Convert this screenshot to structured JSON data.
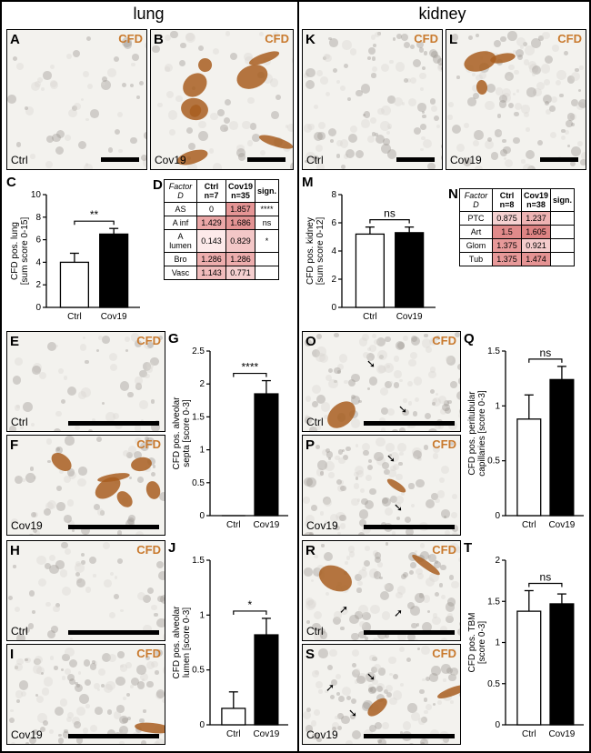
{
  "headers": {
    "left": "lung",
    "right": "kidney"
  },
  "cfd_label": "CFD",
  "cfd_color": "#c97a2e",
  "ctrl": "Ctrl",
  "cov": "Cov19",
  "panels": {
    "A": {
      "letter": "A",
      "cond": "Ctrl"
    },
    "B": {
      "letter": "B",
      "cond": "Cov19"
    },
    "K": {
      "letter": "K",
      "cond": "Ctrl"
    },
    "L": {
      "letter": "L",
      "cond": "Cov19"
    },
    "E": {
      "letter": "E",
      "cond": "Ctrl"
    },
    "F": {
      "letter": "F",
      "cond": "Cov19"
    },
    "H": {
      "letter": "H",
      "cond": "Ctrl"
    },
    "I": {
      "letter": "I",
      "cond": "Cov19"
    },
    "O": {
      "letter": "O",
      "cond": "Ctrl"
    },
    "P": {
      "letter": "P",
      "cond": "Cov19"
    },
    "R": {
      "letter": "R",
      "cond": "Ctrl"
    },
    "S": {
      "letter": "S",
      "cond": "Cov19"
    }
  },
  "charts": {
    "C": {
      "letter": "C",
      "ylabel": "CFD pos. lung\n[sum score 0-15]",
      "sig": "**",
      "ymax": 10,
      "ticks": [
        0,
        2,
        4,
        6,
        8,
        10
      ],
      "ctrl_val": 4.0,
      "ctrl_err": 0.8,
      "cov_val": 6.5,
      "cov_err": 0.5
    },
    "M": {
      "letter": "M",
      "ylabel": "CFD pos. kidney\n[sum score 0-12]",
      "sig": "ns",
      "ymax": 8,
      "ticks": [
        0,
        2,
        4,
        6,
        8
      ],
      "ctrl_val": 5.2,
      "ctrl_err": 0.5,
      "cov_val": 5.3,
      "cov_err": 0.4
    },
    "G": {
      "letter": "G",
      "ylabel": "CFD pos. alveolar\nsepta [score 0-3]",
      "sig": "****",
      "ymax": 2.5,
      "ticks": [
        0,
        0.5,
        1.0,
        1.5,
        2.0,
        2.5
      ],
      "ctrl_val": 0.0,
      "ctrl_err": 0.0,
      "cov_val": 1.85,
      "cov_err": 0.2
    },
    "J": {
      "letter": "J",
      "ylabel": "CFD pos. alveolar\nlumen [score 0-3]",
      "sig": "*",
      "ymax": 1.5,
      "ticks": [
        0,
        0.5,
        1.0,
        1.5
      ],
      "ctrl_val": 0.15,
      "ctrl_err": 0.15,
      "cov_val": 0.82,
      "cov_err": 0.15
    },
    "Q": {
      "letter": "Q",
      "ylabel": "CFD pos. peritubular\ncapillaries [score 0-3]",
      "sig": "ns",
      "ymax": 1.5,
      "ticks": [
        0,
        0.5,
        1.0,
        1.5
      ],
      "ctrl_val": 0.88,
      "ctrl_err": 0.22,
      "cov_val": 1.24,
      "cov_err": 0.12
    },
    "T": {
      "letter": "T",
      "ylabel": "CFD pos. TBM\n[score 0-3]",
      "sig": "ns",
      "ymax": 2.0,
      "ticks": [
        0,
        0.5,
        1.0,
        1.5,
        2.0
      ],
      "ctrl_val": 1.38,
      "ctrl_err": 0.25,
      "cov_val": 1.47,
      "cov_err": 0.12
    }
  },
  "tableD": {
    "letter": "D",
    "header": [
      "Factor D",
      "Ctrl\nn=7",
      "Cov19\nn=35",
      "sign."
    ],
    "rows": [
      {
        "label": "AS",
        "ctrl": "0",
        "cov": "1.857",
        "sig": "****",
        "cell_colors": [
          "#fff",
          "#e59595",
          ""
        ]
      },
      {
        "label": "A inf",
        "ctrl": "1.429",
        "cov": "1.686",
        "sig": "ns",
        "cell_colors": [
          "#eba7a7",
          "#e39393",
          ""
        ]
      },
      {
        "label": "A lumen",
        "ctrl": "0.143",
        "cov": "0.829",
        "sig": "*",
        "cell_colors": [
          "#fdeaea",
          "#f3c7c7",
          ""
        ]
      },
      {
        "label": "Bro",
        "ctrl": "1.286",
        "cov": "1.286",
        "sig": "",
        "cell_colors": [
          "#edadad",
          "#edadad",
          ""
        ]
      },
      {
        "label": "Vasc",
        "ctrl": "1.143",
        "cov": "0.771",
        "sig": "",
        "cell_colors": [
          "#f1bcbc",
          "#f5cfcf",
          ""
        ]
      }
    ]
  },
  "tableN": {
    "letter": "N",
    "header": [
      "Factor D",
      "Ctrl\nn=8",
      "Cov19\nn=38",
      "sign."
    ],
    "rows": [
      {
        "label": "PTC",
        "ctrl": "0.875",
        "cov": "1.237",
        "sig": "",
        "cell_colors": [
          "#f5d1d1",
          "#eeb3b3",
          ""
        ]
      },
      {
        "label": "Art",
        "ctrl": "1.5",
        "cov": "1.605",
        "sig": "",
        "cell_colors": [
          "#e08a8a",
          "#de8484",
          ""
        ]
      },
      {
        "label": "Glom",
        "ctrl": "1.375",
        "cov": "0.921",
        "sig": "",
        "cell_colors": [
          "#e79999",
          "#f4cccc",
          ""
        ]
      },
      {
        "label": "Tub",
        "ctrl": "1.375",
        "cov": "1.474",
        "sig": "",
        "cell_colors": [
          "#e79999",
          "#e59393",
          ""
        ]
      }
    ]
  },
  "style": {
    "histology_bg": "#f3f2ee",
    "tissue_light": "#dad7d2",
    "tissue_dark": "#9a9690",
    "stain_color": "#a85e20",
    "stain_dark": "#7a3f10"
  }
}
